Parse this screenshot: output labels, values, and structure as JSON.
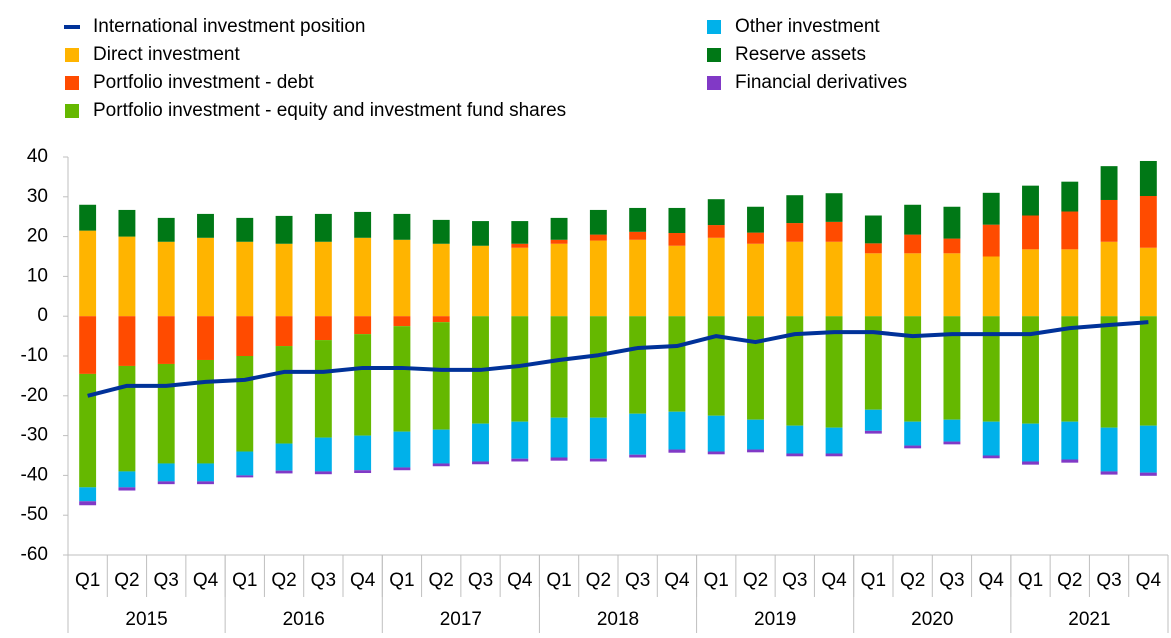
{
  "chart_data": {
    "type": "bar",
    "categories": [
      "Q1",
      "Q2",
      "Q3",
      "Q4",
      "Q1",
      "Q2",
      "Q3",
      "Q4",
      "Q1",
      "Q2",
      "Q3",
      "Q4",
      "Q1",
      "Q2",
      "Q3",
      "Q4",
      "Q1",
      "Q2",
      "Q3",
      "Q4",
      "Q1",
      "Q2",
      "Q3",
      "Q4",
      "Q1",
      "Q2",
      "Q3",
      "Q4"
    ],
    "years": [
      "2015",
      "2016",
      "2017",
      "2018",
      "2019",
      "2020",
      "2021"
    ],
    "line": {
      "name": "International investment position",
      "color": "#003299",
      "values": [
        -20,
        -17.5,
        -17.5,
        -16.5,
        -16,
        -14,
        -14,
        -13,
        -13,
        -13.5,
        -13.5,
        -12.5,
        -11,
        -9.8,
        -8,
        -7.5,
        -5,
        -6.5,
        -4.5,
        -4,
        -4,
        -5,
        -4.5,
        -4.5,
        -4.5,
        -3,
        -2.2,
        -1.5
      ]
    },
    "series": [
      {
        "name": "Direct investment",
        "color": "#ffb400",
        "values": [
          21.5,
          20,
          18.7,
          19.7,
          18.7,
          18.2,
          18.7,
          19.7,
          19.2,
          18.2,
          17.7,
          17.2,
          18.2,
          19,
          19.2,
          17.7,
          19.7,
          18.2,
          18.7,
          18.7,
          15.8,
          15.8,
          15.8,
          15,
          16.8,
          16.8,
          18.7,
          17.2
        ]
      },
      {
        "name": "Portfolio investment - debt",
        "color": "#ff4b00",
        "values": [
          -14.5,
          -12.5,
          -12,
          -11,
          -10,
          -7.5,
          -6,
          -4.5,
          -2.5,
          -1.5,
          0,
          1,
          1,
          1.5,
          2,
          3.2,
          3.2,
          2.8,
          4.7,
          5,
          2.5,
          4.7,
          3.7,
          8,
          8.5,
          9.5,
          10.5,
          13
        ]
      },
      {
        "name": "Portfolio investment - equity and investment fund shares",
        "color": "#65b800",
        "values": [
          -28.5,
          -26.5,
          -25,
          -26,
          -24,
          -24.5,
          -24.5,
          -25.5,
          -26.5,
          -27,
          -27,
          -26.5,
          -25.5,
          -25.5,
          -24.5,
          -24,
          -25,
          -26,
          -27.5,
          -28,
          -23.5,
          -26.5,
          -26,
          -26.5,
          -27,
          -26.5,
          -28,
          -27.5
        ]
      },
      {
        "name": "Other investment",
        "color": "#00b1ea",
        "values": [
          -3.5,
          -4,
          -4.5,
          -4.5,
          -6,
          -6.8,
          -8.5,
          -8.7,
          -9,
          -8.5,
          -9.5,
          -9.3,
          -10,
          -10.3,
          -10.3,
          -9.5,
          -9,
          -7.5,
          -7,
          -6.5,
          -5.3,
          -6,
          -5.5,
          -8.5,
          -9.5,
          -9.5,
          -11,
          -11.8
        ]
      },
      {
        "name": "Reserve assets",
        "color": "#007816",
        "values": [
          6.5,
          6.7,
          6,
          6,
          6,
          7,
          7,
          6.5,
          6.5,
          6,
          6.2,
          5.7,
          5.5,
          6.2,
          6,
          6.3,
          6.5,
          6.5,
          7,
          7.2,
          7,
          7.5,
          8,
          8,
          7.5,
          7.5,
          8.5,
          8.8
        ]
      },
      {
        "name": "Financial derivatives",
        "color": "#8139c6",
        "values": [
          -1,
          -0.8,
          -0.7,
          -0.7,
          -0.5,
          -0.7,
          -0.7,
          -0.7,
          -0.7,
          -0.7,
          -0.7,
          -0.7,
          -0.8,
          -0.7,
          -0.7,
          -0.8,
          -0.7,
          -0.7,
          -0.7,
          -0.7,
          -0.7,
          -0.7,
          -0.7,
          -0.7,
          -0.8,
          -0.8,
          -0.8,
          -0.8
        ]
      }
    ],
    "ylim": [
      -60,
      40
    ],
    "yticks": [
      -60,
      -50,
      -40,
      -30,
      -20,
      -10,
      0,
      10,
      20,
      30,
      40
    ],
    "grid": false
  }
}
